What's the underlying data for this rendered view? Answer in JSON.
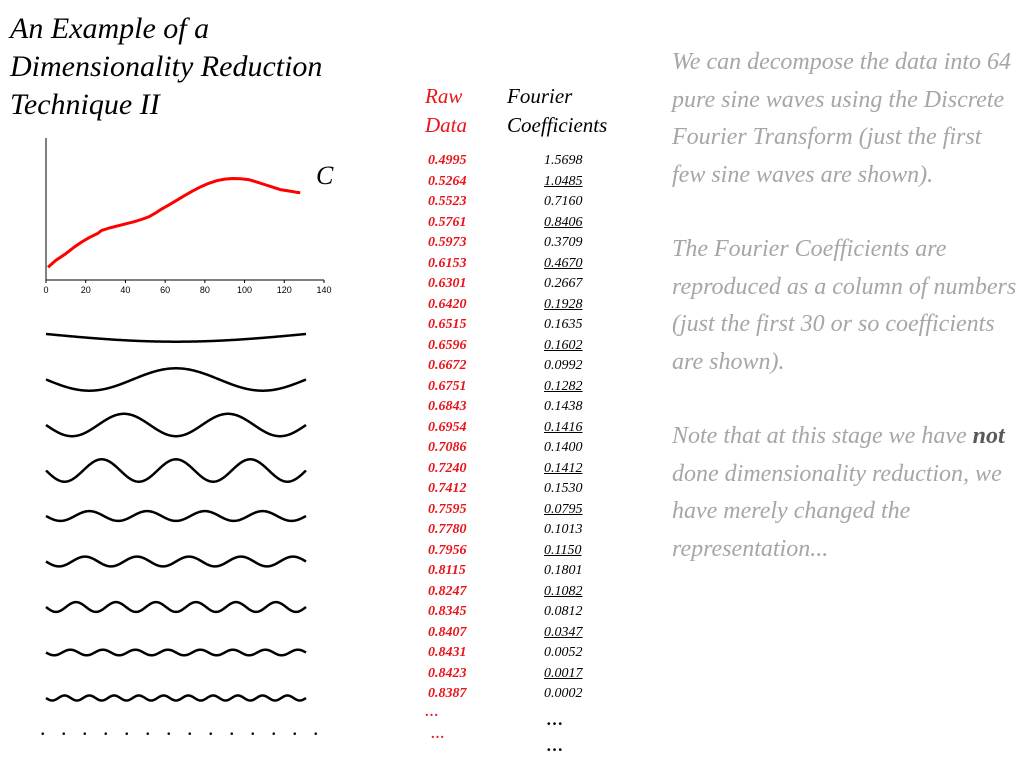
{
  "slide": {
    "title": "An Example of a Dimensionality Reduction Technique II"
  },
  "chart_data": {
    "type": "line",
    "series_label": "C",
    "x_ticks": [
      "0",
      "20",
      "40",
      "60",
      "80",
      "100",
      "120",
      "140"
    ],
    "xlim": [
      0,
      140
    ],
    "ylim": [
      0.45,
      1.0
    ],
    "grid": false,
    "color": "#ff0000",
    "x": [
      1,
      5,
      10,
      14,
      18,
      22,
      26,
      28,
      32,
      36,
      40,
      44,
      48,
      52,
      55,
      58,
      62,
      66,
      70,
      74,
      78,
      82,
      86,
      90,
      94,
      98,
      102,
      106,
      110,
      114,
      118,
      122,
      126,
      128
    ],
    "values": [
      0.4995,
      0.5264,
      0.5523,
      0.5761,
      0.5973,
      0.6153,
      0.6301,
      0.642,
      0.6515,
      0.6596,
      0.6672,
      0.6751,
      0.6843,
      0.6954,
      0.7086,
      0.724,
      0.7412,
      0.7595,
      0.778,
      0.7956,
      0.8115,
      0.8247,
      0.8345,
      0.8407,
      0.8431,
      0.8423,
      0.8387,
      0.83,
      0.82,
      0.81,
      0.8,
      0.795,
      0.79,
      0.788
    ]
  },
  "waves": {
    "frequencies": [
      0.5,
      1.5,
      2.5,
      3.5,
      4.5,
      5.0,
      6.5,
      8.0,
      10.5
    ],
    "amplitudes": [
      0.55,
      0.8,
      0.8,
      0.8,
      0.35,
      0.35,
      0.35,
      0.2,
      0.18
    ],
    "dots": ". . . . . . . . . . . . . ."
  },
  "table": {
    "raw_header": [
      "Raw",
      "Data"
    ],
    "fourier_header": [
      "Fourier",
      "Coefficients"
    ],
    "raw_values": [
      "0.4995",
      "0.5264",
      "0.5523",
      "0.5761",
      "0.5973",
      "0.6153",
      "0.6301",
      "0.6420",
      "0.6515",
      "0.6596",
      "0.6672",
      "0.6751",
      "0.6843",
      "0.6954",
      "0.7086",
      "0.7240",
      "0.7412",
      "0.7595",
      "0.7780",
      "0.7956",
      "0.8115",
      "0.8247",
      "0.8345",
      "0.8407",
      "0.8431",
      "0.8423",
      "0.8387"
    ],
    "coefficients": [
      "1.5698",
      "1.0485",
      "0.7160",
      "0.8406",
      "0.3709",
      "0.4670",
      "0.2667",
      "0.1928",
      "0.1635",
      "0.1602",
      "0.0992",
      "0.1282",
      "0.1438",
      "0.1416",
      "0.1400",
      "0.1412",
      "0.1530",
      "0.0795",
      "0.1013",
      "0.1150",
      "0.1801",
      "0.1082",
      "0.0812",
      "0.0347",
      "0.0052",
      "0.0017",
      "0.0002"
    ],
    "raw_ellipsis": [
      "…",
      "…"
    ],
    "coef_ellipsis": [
      "…",
      "…"
    ]
  },
  "description": {
    "p1": "We can decompose the data into 64 pure sine waves using the Discrete Fourier Transform (just the first few sine waves are shown).",
    "p2": "The Fourier Coefficients are reproduced as a column of numbers (just the first 30 or so coefficients are shown).",
    "p3_before": "Note that at this stage we have ",
    "p3_bold": "not",
    "p3_after": " done dimensionality reduction, we have merely changed the representation..."
  }
}
